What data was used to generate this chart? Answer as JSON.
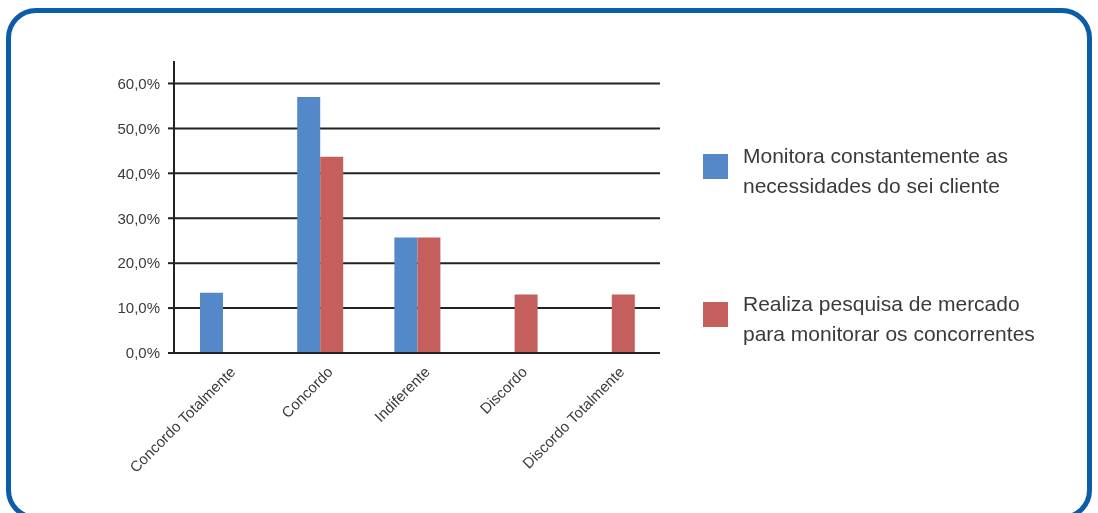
{
  "chart_data": {
    "type": "bar",
    "categories": [
      "Concordo Totalmente",
      "Concordo",
      "Indiferente",
      "Discordo",
      "Discordo Totalmente"
    ],
    "series": [
      {
        "name": "Monitora constantemente as necessidades do sei cliente",
        "color": "#5588c8",
        "values": [
          13.4,
          57,
          25.7,
          null,
          null
        ]
      },
      {
        "name": "Realiza pesquisa de mercado para monitorar os concorrentes",
        "color": "#c45f5e",
        "values": [
          null,
          43.7,
          25.7,
          13,
          13
        ]
      }
    ],
    "ylim": [
      0,
      65
    ],
    "yticks": [
      {
        "value": 0,
        "label": "0,0%"
      },
      {
        "value": 10,
        "label": "10,0%"
      },
      {
        "value": 20,
        "label": "20,0%"
      },
      {
        "value": 30,
        "label": "30,0%"
      },
      {
        "value": 40,
        "label": "40,0%"
      },
      {
        "value": 50,
        "label": "50,0%"
      },
      {
        "value": 60,
        "label": "60,0%"
      }
    ],
    "grid": "y",
    "legend": "right"
  }
}
